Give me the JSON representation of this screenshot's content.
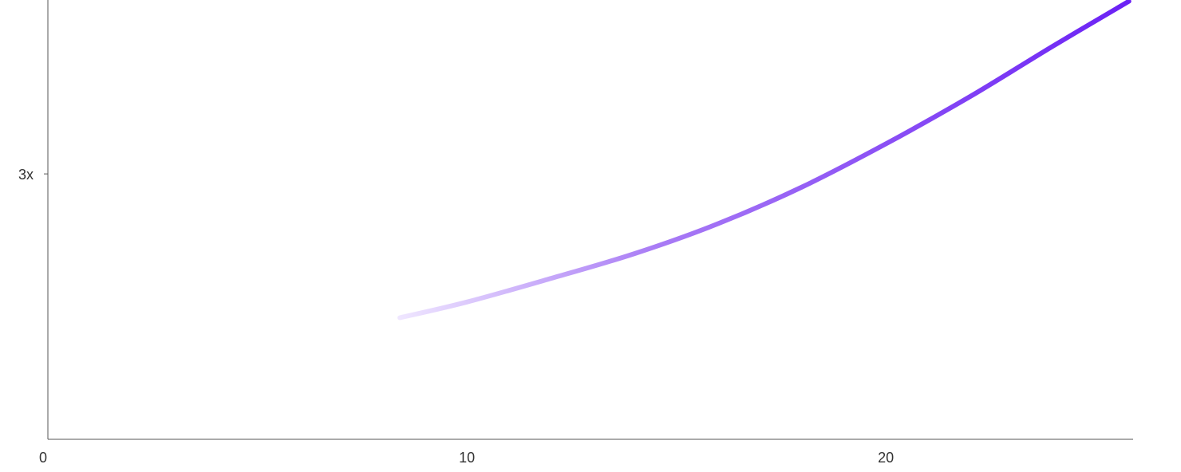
{
  "chart_data": {
    "type": "line",
    "x_ticks": [
      {
        "value": 0,
        "label": "0"
      },
      {
        "value": 10,
        "label": "10"
      },
      {
        "value": 20,
        "label": "20"
      }
    ],
    "y_ticks": [
      {
        "value": 3,
        "label": "3x"
      }
    ],
    "xlim": [
      0,
      25.9
    ],
    "ylim": [
      0.97,
      4.33
    ],
    "grid": false,
    "series": [
      {
        "x": [
          8.4,
          10,
          12,
          14,
          16,
          18,
          20,
          22,
          24,
          25.8
        ],
        "y": [
          1.9,
          2.02,
          2.2,
          2.39,
          2.62,
          2.9,
          3.23,
          3.59,
          3.98,
          4.32
        ],
        "color": "#6b21f5",
        "fade_start_color": "#efe6ff"
      }
    ]
  }
}
